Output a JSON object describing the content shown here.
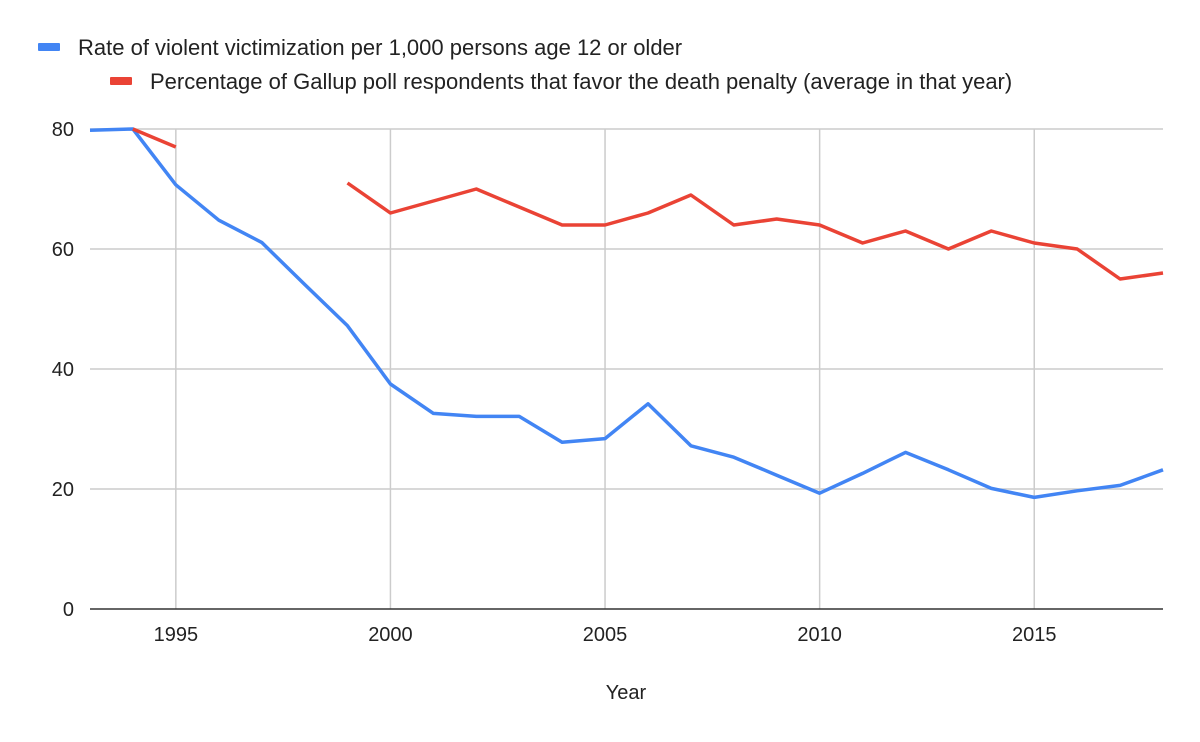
{
  "chart_data": {
    "type": "line",
    "xlabel": "Year",
    "ylabel": "",
    "xlim": [
      1993,
      2018
    ],
    "ylim": [
      0,
      80
    ],
    "x_ticks": [
      1995,
      2000,
      2005,
      2010,
      2015
    ],
    "y_ticks": [
      0,
      20,
      40,
      60,
      80
    ],
    "grid": true,
    "legend_position": "top-left",
    "series": [
      {
        "name": "Rate of violent victimization per 1,000 persons age 12 or older",
        "color": "#4285f4",
        "points": [
          [
            1993,
            79.8
          ],
          [
            1994,
            80.0
          ],
          [
            1995,
            70.7
          ],
          [
            1996,
            64.8
          ],
          [
            1997,
            61.1
          ],
          [
            1998,
            54.1
          ],
          [
            1999,
            47.2
          ],
          [
            2000,
            37.5
          ],
          [
            2001,
            32.6
          ],
          [
            2002,
            32.1
          ],
          [
            2003,
            32.1
          ],
          [
            2004,
            27.8
          ],
          [
            2005,
            28.4
          ],
          [
            2006,
            34.2
          ],
          [
            2007,
            27.2
          ],
          [
            2008,
            25.3
          ],
          [
            2009,
            22.3
          ],
          [
            2010,
            19.3
          ],
          [
            2011,
            22.6
          ],
          [
            2012,
            26.1
          ],
          [
            2013,
            23.2
          ],
          [
            2014,
            20.1
          ],
          [
            2015,
            18.6
          ],
          [
            2016,
            19.7
          ],
          [
            2017,
            20.6
          ],
          [
            2018,
            23.2
          ]
        ]
      },
      {
        "name": "Percentage of Gallup poll respondents that favor the death penalty (average in that year)",
        "color": "#ea4335",
        "points": [
          [
            1994,
            80
          ],
          [
            1995,
            77
          ],
          [
            1996,
            null
          ],
          [
            1997,
            null
          ],
          [
            1998,
            null
          ],
          [
            1999,
            71
          ],
          [
            2000,
            66
          ],
          [
            2001,
            68
          ],
          [
            2002,
            70
          ],
          [
            2003,
            67
          ],
          [
            2004,
            64
          ],
          [
            2005,
            64
          ],
          [
            2006,
            66
          ],
          [
            2007,
            69
          ],
          [
            2008,
            64
          ],
          [
            2009,
            65
          ],
          [
            2010,
            64
          ],
          [
            2011,
            61
          ],
          [
            2012,
            63
          ],
          [
            2013,
            60
          ],
          [
            2014,
            63
          ],
          [
            2015,
            61
          ],
          [
            2016,
            60
          ],
          [
            2017,
            55
          ],
          [
            2018,
            56
          ]
        ]
      }
    ]
  }
}
